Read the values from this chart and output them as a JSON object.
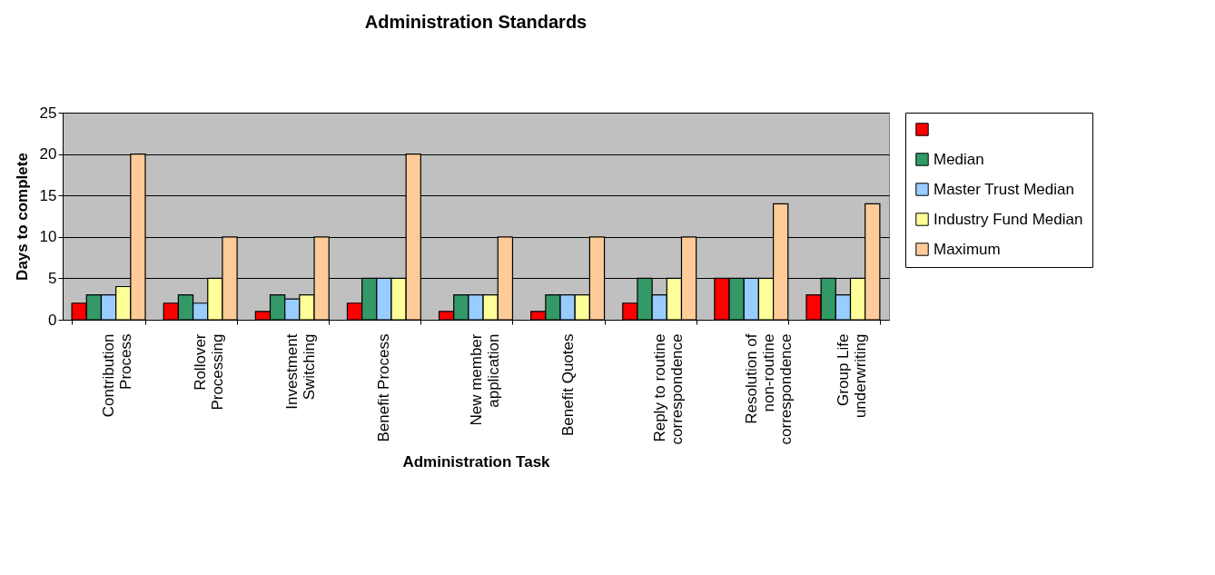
{
  "chart_data": {
    "type": "bar",
    "title": "Administration Standards",
    "xlabel": "Administration Task",
    "ylabel": "Days to complete",
    "categories": [
      "Contribution Process",
      "Rollover Processing",
      "Investment Switching",
      "Benefit Process",
      "New member application",
      "Benefit Quotes",
      "Reply to routine correspondence",
      "Resolution of non-routine correspondence",
      "Group Life underwriting"
    ],
    "series": [
      {
        "color": "#ff0000",
        "values": [
          2,
          2,
          1,
          2,
          1,
          1,
          2,
          5,
          3
        ]
      },
      {
        "name": "Median",
        "color": "#339966",
        "values": [
          3,
          3,
          3,
          5,
          3,
          3,
          5,
          5,
          5
        ]
      },
      {
        "name": "Master Trust Median",
        "color": "#99ccff",
        "values": [
          3,
          2,
          2.5,
          5,
          3,
          3,
          3,
          5,
          3
        ]
      },
      {
        "name": "Industry Fund Median",
        "color": "#ffff99",
        "values": [
          4,
          5,
          3,
          5,
          3,
          3,
          5,
          5,
          5
        ]
      },
      {
        "name": "Maximum",
        "color": "#ffcc99",
        "values": [
          20,
          10,
          10,
          20,
          10,
          10,
          10,
          14,
          14
        ]
      }
    ],
    "ylim": [
      0,
      25
    ],
    "yticks": [
      0,
      5,
      10,
      15,
      20,
      25
    ],
    "grid": "y",
    "legend": "right"
  }
}
